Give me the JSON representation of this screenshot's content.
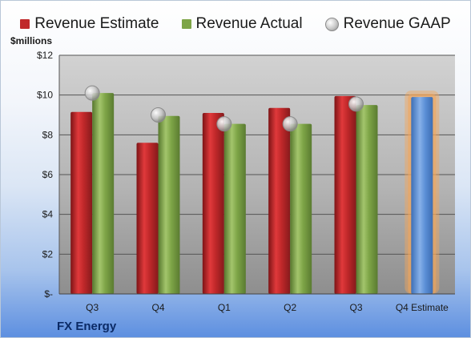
{
  "unit_label": "$millions",
  "company": "FX Energy",
  "colors": {
    "estimate": "#c0282a",
    "actual": "#7ea547",
    "gaap": "#b0b0b0",
    "forecast": "#5b8fd6",
    "forecast_glow": "#f3a65a"
  },
  "chart_data": {
    "type": "bar",
    "categories": [
      "Q3",
      "Q4",
      "Q1",
      "Q2",
      "Q3",
      "Q4 Estimate"
    ],
    "series": [
      {
        "name": "Revenue Estimate",
        "values": [
          9.15,
          7.6,
          9.1,
          9.35,
          9.95,
          null
        ]
      },
      {
        "name": "Revenue Actual",
        "values": [
          10.1,
          8.95,
          8.55,
          8.55,
          9.5,
          null
        ]
      },
      {
        "name": "Revenue GAAP",
        "values": [
          10.1,
          9.0,
          8.55,
          8.55,
          9.55,
          null
        ]
      }
    ],
    "forecast": {
      "category": "Q4 Estimate",
      "value": 9.9
    },
    "yticks": [
      "$-",
      "$2",
      "$4",
      "$6",
      "$8",
      "$10",
      "$12"
    ],
    "ylim": [
      0,
      12
    ],
    "grid": true,
    "legend": "top"
  }
}
